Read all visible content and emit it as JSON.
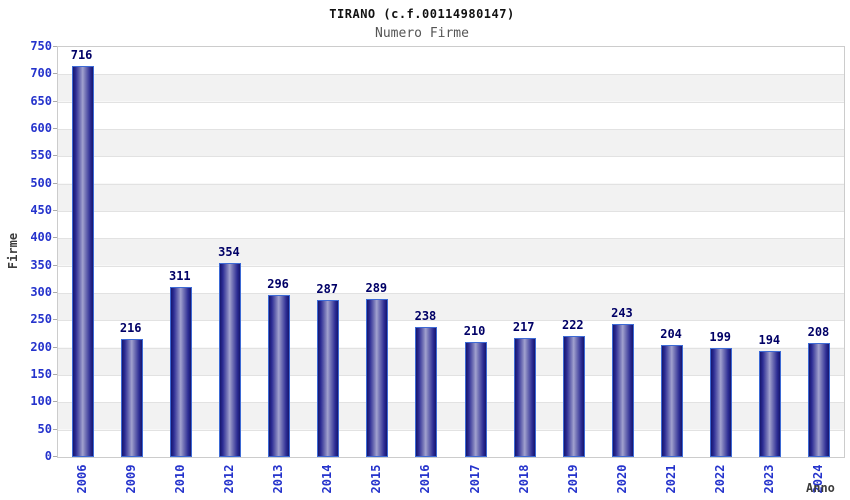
{
  "chart_data": {
    "type": "bar",
    "title": "TIRANO (c.f.00114980147)",
    "subtitle": "Numero Firme",
    "xlabel": "Anno",
    "ylabel": "Firme",
    "categories": [
      "2006",
      "2009",
      "2010",
      "2012",
      "2013",
      "2014",
      "2015",
      "2016",
      "2017",
      "2018",
      "2019",
      "2020",
      "2021",
      "2022",
      "2023",
      "2024"
    ],
    "values": [
      716,
      216,
      311,
      354,
      296,
      287,
      289,
      238,
      210,
      217,
      222,
      243,
      204,
      199,
      194,
      208
    ],
    "ylim": [
      0,
      750
    ],
    "yticks": [
      0,
      50,
      100,
      150,
      200,
      250,
      300,
      350,
      400,
      450,
      500,
      550,
      600,
      650,
      700,
      750
    ],
    "grid": true,
    "legend": false,
    "alternating_bands": true,
    "colors": {
      "bar_dark": "#16166e",
      "bar_light": "#a2a2cf",
      "bar_border": "#3d6ad5",
      "value_label": "#000066",
      "tick_label": "#2533cc",
      "axis_title": "#3c3c3c",
      "band": "#f2f2f2",
      "grid": "#e2e2e2",
      "plot_border": "#cccccc",
      "subtitle": "#555555"
    }
  }
}
